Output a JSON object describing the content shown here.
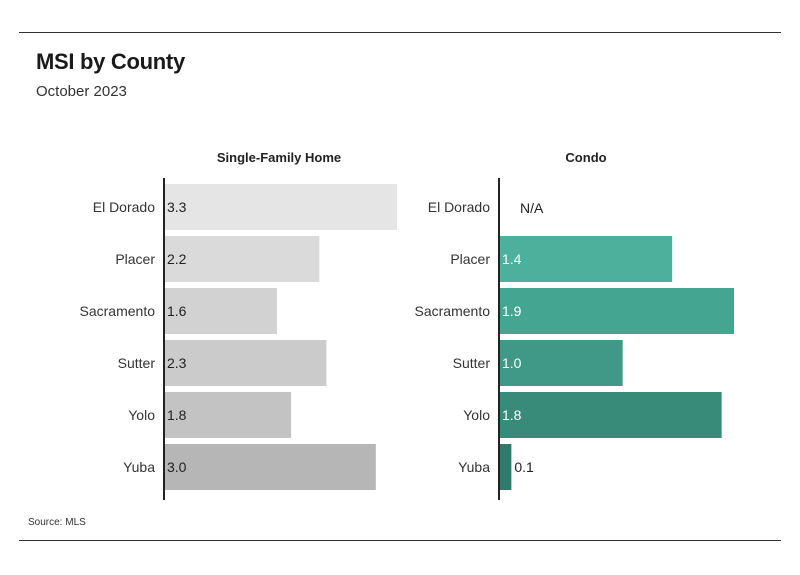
{
  "header": {
    "title": "MSI by County",
    "subtitle": "October 2023"
  },
  "footer": {
    "source": "Source: MLS"
  },
  "chart_data": [
    {
      "type": "bar",
      "orientation": "horizontal",
      "title": "Single-Family Home",
      "categories": [
        "El Dorado",
        "Placer",
        "Sacramento",
        "Sutter",
        "Yolo",
        "Yuba"
      ],
      "values": [
        3.3,
        2.2,
        1.6,
        2.3,
        1.8,
        3.0
      ],
      "value_labels": [
        "3.3",
        "2.2",
        "1.6",
        "2.3",
        "1.8",
        "3.0"
      ],
      "xlim": [
        0,
        3.3
      ],
      "grid": false,
      "bar_colors": [
        "#e5e5e5",
        "#dadada",
        "#d2d2d2",
        "#cbcbcb",
        "#c3c3c3",
        "#b6b6b6"
      ],
      "label_color": "#222222"
    },
    {
      "type": "bar",
      "orientation": "horizontal",
      "title": "Condo",
      "categories": [
        "El Dorado",
        "Placer",
        "Sacramento",
        "Sutter",
        "Yolo",
        "Yuba"
      ],
      "values": [
        null,
        1.4,
        1.9,
        1.0,
        1.8,
        0.1
      ],
      "value_labels": [
        "N/A",
        "1.4",
        "1.9",
        "1.0",
        "1.8",
        "0.1"
      ],
      "xlim": [
        0,
        1.9
      ],
      "grid": false,
      "bar_colors": [
        "#52b6a1",
        "#4db09c",
        "#44a591",
        "#3f9986",
        "#388a79",
        "#2f7a6a"
      ],
      "label_color": "#ffffff",
      "small_label_color": "#222222"
    }
  ]
}
